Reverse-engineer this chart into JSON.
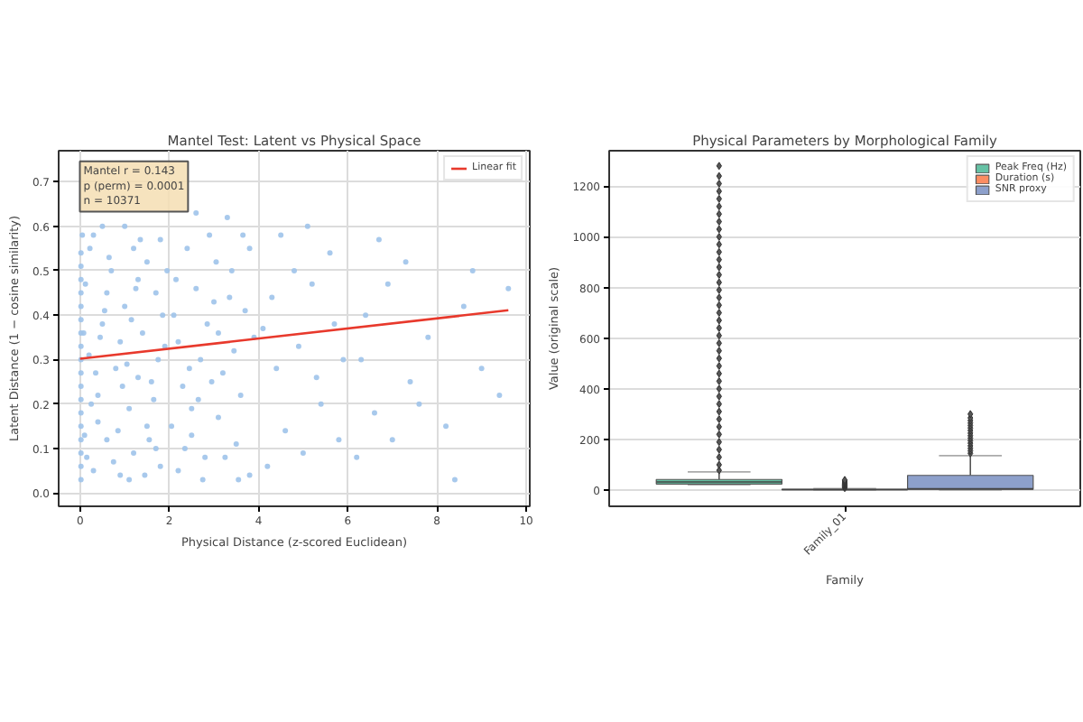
{
  "chart_data": [
    {
      "type": "scatter",
      "title": "Mantel Test: Latent vs Physical Space",
      "xlabel": "Physical Distance (z-scored Euclidean)",
      "ylabel": "Latent Distance (1 − cosine similarity)",
      "xlim": [
        -0.48,
        10.08
      ],
      "ylim": [
        -0.03,
        0.77
      ],
      "xticks": [
        0,
        2,
        4,
        6,
        8,
        10
      ],
      "yticks": [
        {
          "value": 0,
          "label": "0.0"
        },
        0.1,
        0.2,
        0.3,
        0.4,
        0.5,
        0.6,
        0.7
      ],
      "grid": true,
      "legend": "top right",
      "annotations": [
        "Mantel r = 0.143\np (perm) = 0.0001\nn = 10371"
      ],
      "series": [
        {
          "color": "#9fc3ea",
          "x": [
            0.02,
            0.02,
            0.02,
            0.02,
            0.02,
            0.02,
            0.02,
            0.02,
            0.02,
            0.02,
            0.02,
            0.02,
            0.02,
            0.02,
            0.02,
            0.02,
            0.02,
            0.02,
            0.3,
            0.6,
            0.9,
            1.2,
            1.5,
            1.8,
            0.4,
            0.8,
            1.1,
            1.6,
            1.9,
            0.5,
            1.0,
            1.4,
            1.7,
            0.7,
            1.2,
            1.5,
            0.3,
            1.0,
            1.8,
            0.2,
            0.6,
            1.3,
            0.9,
            1.7,
            0.4,
            1.1,
            2.2,
            2.5,
            2.8,
            3.1,
            3.5,
            3.8,
            2.3,
            2.7,
            3.2,
            3.6,
            3.9,
            2.1,
            2.6,
            3.0,
            3.4,
            3.7,
            2.4,
            2.9,
            3.3,
            2.6,
            3.8,
            2.2,
            3.1,
            2.5,
            4.2,
            4.6,
            5.0,
            5.4,
            5.8,
            4.4,
            4.9,
            5.3,
            5.7,
            4.3,
            4.8,
            5.2,
            5.6,
            4.5,
            5.9,
            4.1,
            5.1,
            6.2,
            6.6,
            7.0,
            7.4,
            7.8,
            6.4,
            6.9,
            7.3,
            6.3,
            7.6,
            6.7,
            8.2,
            8.6,
            9.0,
            9.4,
            8.4,
            9.6,
            8.8,
            0.15,
            0.25,
            0.35,
            0.45,
            0.55,
            0.65,
            0.75,
            0.85,
            0.95,
            1.05,
            1.15,
            1.25,
            1.35,
            1.45,
            1.55,
            1.65,
            1.75,
            1.85,
            1.95,
            0.12,
            0.22,
            0.5,
            2.35,
            2.65,
            2.85,
            3.05,
            2.15,
            2.45,
            2.75,
            3.25,
            3.45,
            3.65,
            0.05,
            0.08,
            0.1,
            2.05,
            2.95,
            3.35,
            3.55,
            1.3
          ],
          "values": [
            0.03,
            0.06,
            0.09,
            0.12,
            0.15,
            0.18,
            0.21,
            0.24,
            0.27,
            0.3,
            0.33,
            0.36,
            0.39,
            0.42,
            0.45,
            0.48,
            0.51,
            0.54,
            0.05,
            0.12,
            0.04,
            0.09,
            0.15,
            0.06,
            0.22,
            0.28,
            0.19,
            0.25,
            0.33,
            0.38,
            0.42,
            0.36,
            0.45,
            0.5,
            0.55,
            0.52,
            0.58,
            0.6,
            0.57,
            0.31,
            0.45,
            0.48,
            0.34,
            0.1,
            0.16,
            0.03,
            0.05,
            0.13,
            0.08,
            0.17,
            0.11,
            0.04,
            0.24,
            0.3,
            0.27,
            0.22,
            0.35,
            0.4,
            0.46,
            0.43,
            0.5,
            0.41,
            0.55,
            0.58,
            0.62,
            0.63,
            0.55,
            0.34,
            0.36,
            0.19,
            0.06,
            0.14,
            0.09,
            0.2,
            0.12,
            0.28,
            0.33,
            0.26,
            0.38,
            0.44,
            0.5,
            0.47,
            0.54,
            0.58,
            0.3,
            0.37,
            0.6,
            0.08,
            0.18,
            0.12,
            0.25,
            0.35,
            0.4,
            0.47,
            0.52,
            0.3,
            0.2,
            0.57,
            0.15,
            0.42,
            0.28,
            0.22,
            0.03,
            0.46,
            0.5,
            0.08,
            0.2,
            0.27,
            0.35,
            0.41,
            0.53,
            0.07,
            0.14,
            0.24,
            0.29,
            0.39,
            0.46,
            0.57,
            0.04,
            0.12,
            0.21,
            0.3,
            0.4,
            0.5,
            0.47,
            0.55,
            0.6,
            0.1,
            0.21,
            0.38,
            0.52,
            0.48,
            0.28,
            0.03,
            0.08,
            0.32,
            0.58,
            0.58,
            0.36,
            0.13,
            0.15,
            0.25,
            0.44,
            0.03,
            0.26
          ]
        },
        {
          "type": "line",
          "name": "Linear fit",
          "color": "#e8392c",
          "x": [
            0,
            9.6
          ],
          "values": [
            0.302,
            0.411
          ]
        }
      ]
    },
    {
      "type": "box",
      "title": "Physical Parameters by Morphological Family",
      "xlabel": "Family",
      "ylabel": "Value (original scale)",
      "categories": [
        "Family_01"
      ],
      "ylim": [
        -64,
        1340
      ],
      "yticks": [
        0,
        200,
        400,
        600,
        800,
        1000,
        1200
      ],
      "grid": "y",
      "legend": "top right",
      "series": [
        {
          "name": "Peak Freq (Hz)",
          "color": "#66c2a5",
          "boxes": [
            {
              "low": 21,
              "q1": 24,
              "median": 32,
              "q3": 42,
              "high": 72,
              "outliers": [
                78,
                100,
                130,
                160,
                190,
                220,
                250,
                280,
                310,
                340,
                370,
                400,
                430,
                460,
                490,
                520,
                550,
                580,
                610,
                640,
                670,
                700,
                730,
                760,
                790,
                820,
                850,
                880,
                910,
                940,
                970,
                1000,
                1030,
                1060,
                1090,
                1120,
                1150,
                1180,
                1210,
                1240,
                1280
              ]
            }
          ]
        },
        {
          "name": "Duration (s)",
          "color": "#fc8d62",
          "boxes": [
            {
              "low": 0,
              "q1": 1,
              "median": 2,
              "q3": 3,
              "high": 6,
              "outliers": [
                8,
                12,
                16,
                20,
                24,
                28,
                32,
                36,
                40
              ]
            }
          ]
        },
        {
          "name": "SNR proxy",
          "color": "#8da0cb",
          "boxes": [
            {
              "low": 0,
              "q1": 3,
              "median": 5,
              "q3": 58,
              "high": 136,
              "outliers": [
                145,
                155,
                165,
                175,
                185,
                195,
                205,
                215,
                225,
                235,
                245,
                255,
                265,
                275,
                285,
                300
              ]
            }
          ]
        }
      ]
    }
  ]
}
